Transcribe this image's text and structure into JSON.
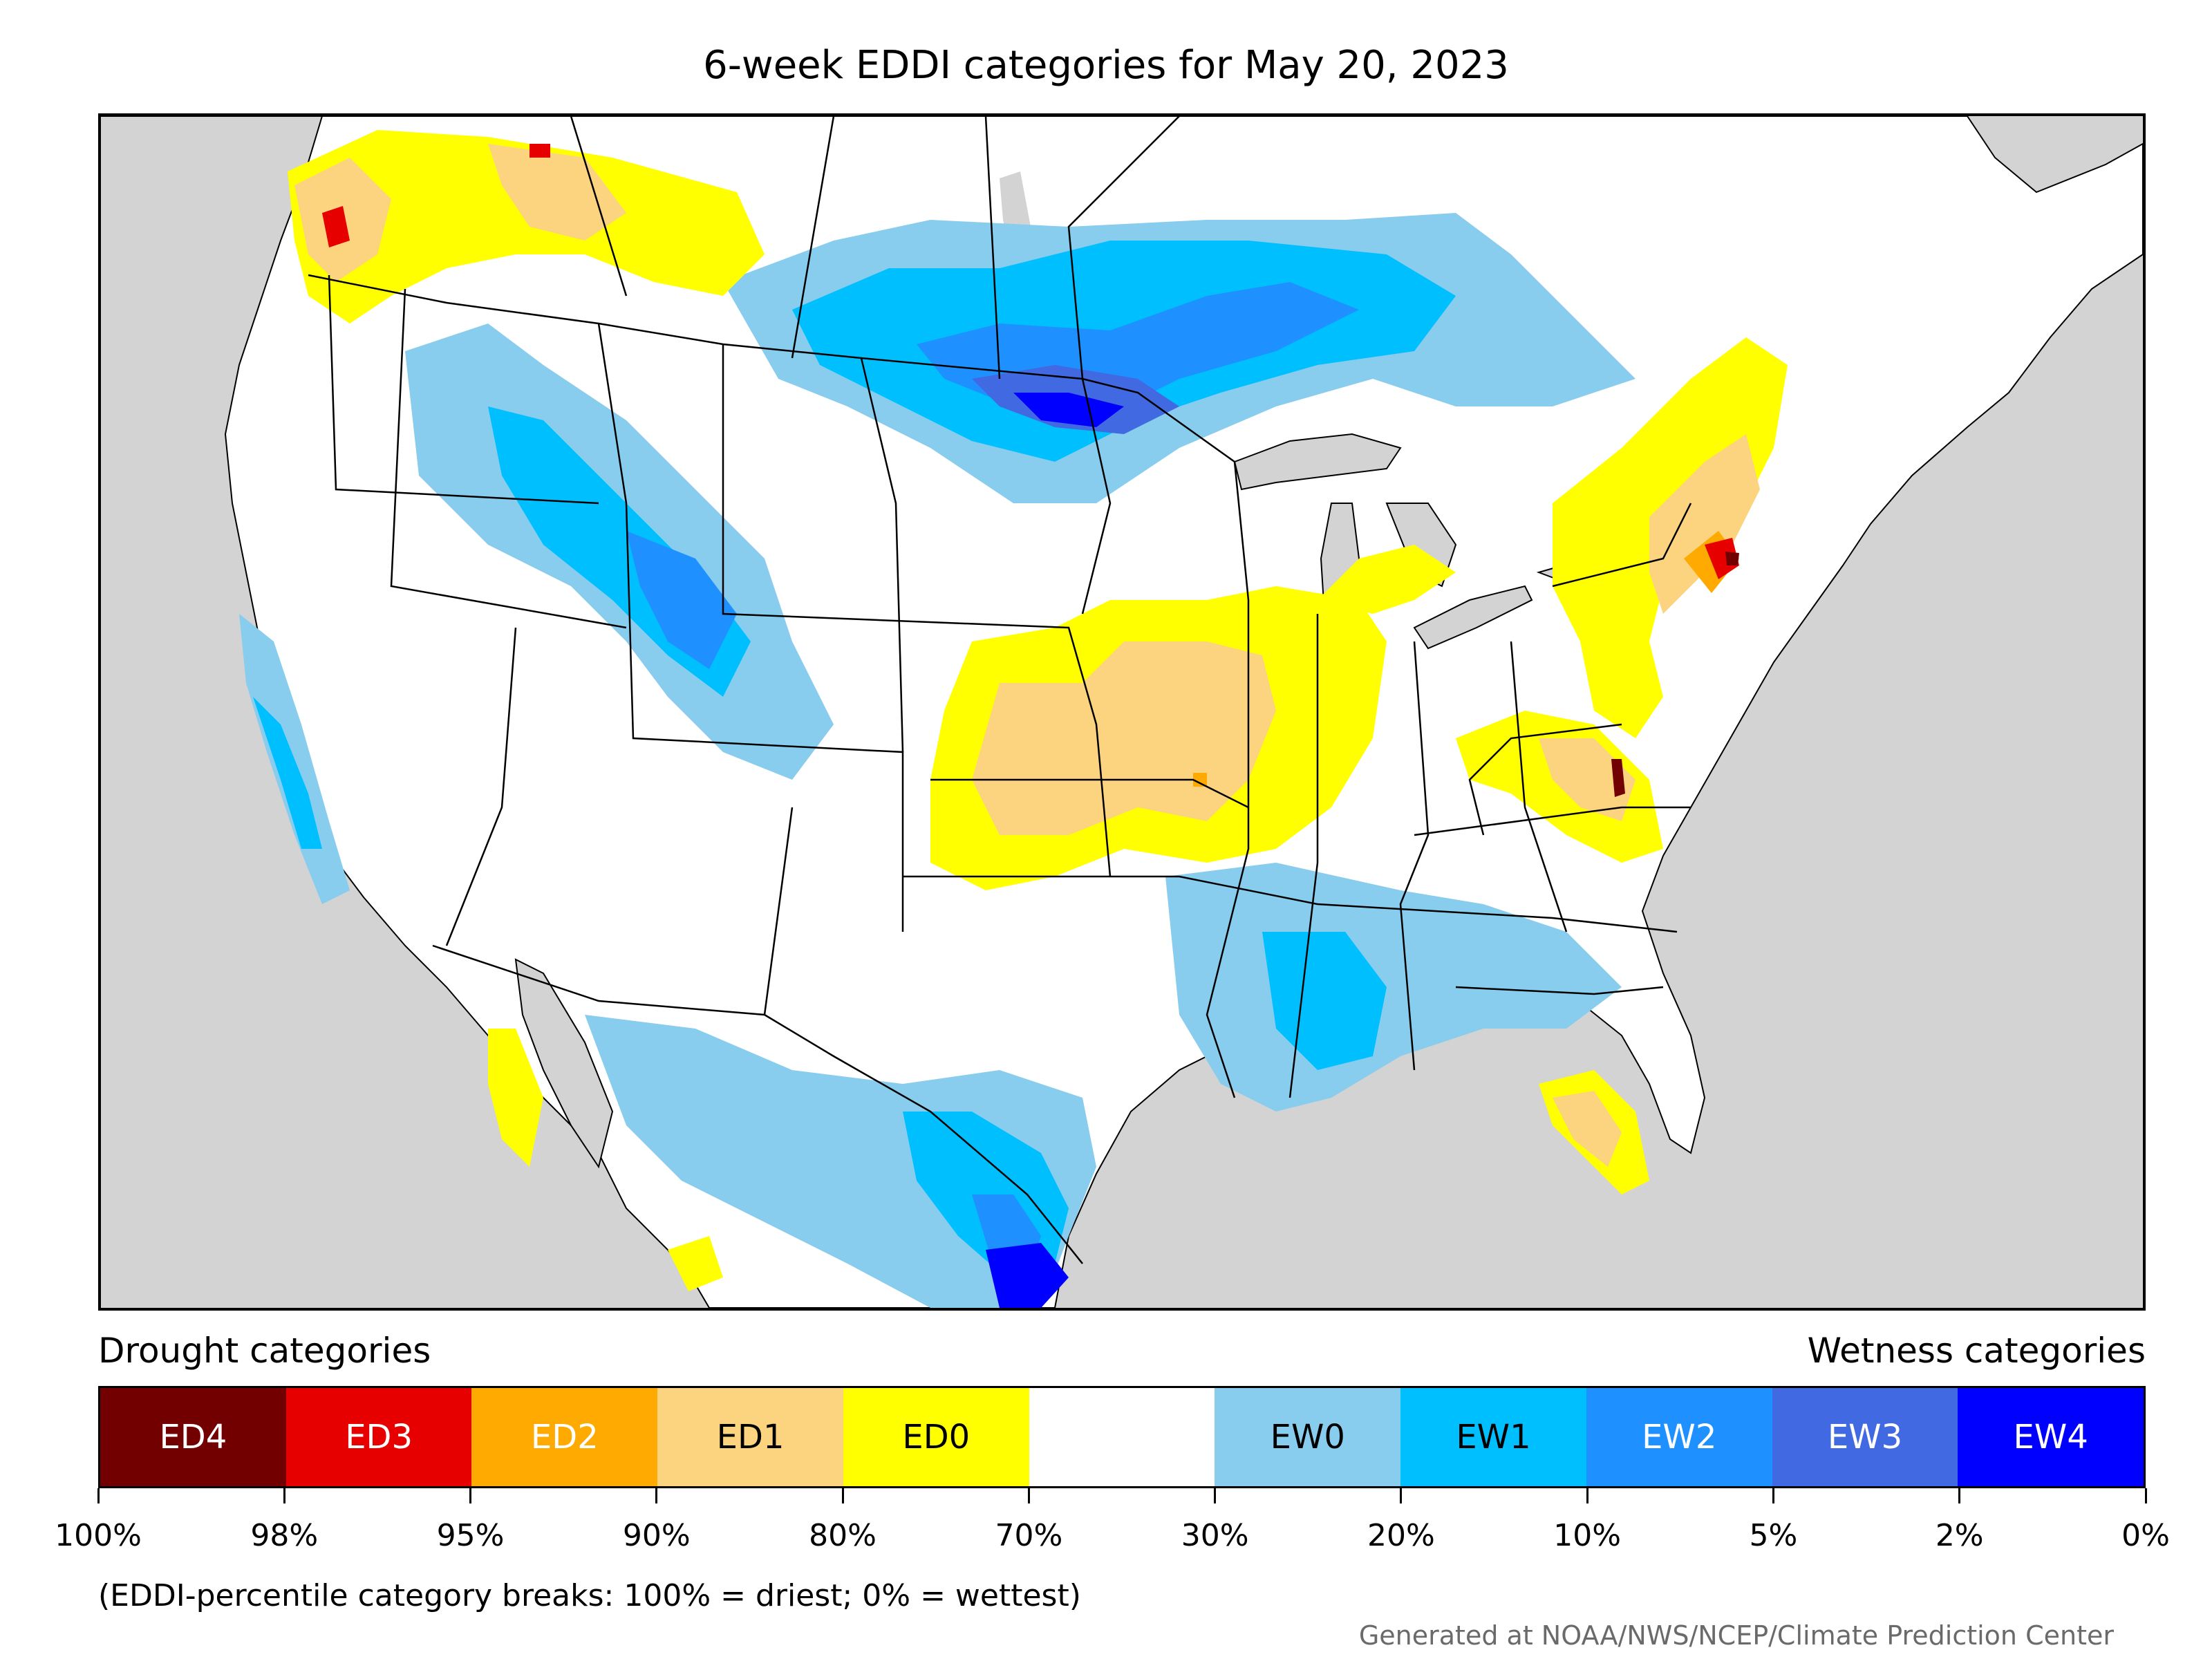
{
  "title": "6-week EDDI categories for May 20, 2023",
  "legend": {
    "drought_heading": "Drought categories",
    "wetness_heading": "Wetness categories",
    "categories": [
      {
        "label": "ED4",
        "color": "#730000",
        "text_color": "#ffffff"
      },
      {
        "label": "ED3",
        "color": "#e60000",
        "text_color": "#ffffff"
      },
      {
        "label": "ED2",
        "color": "#ffaa00",
        "text_color": "#ffffff"
      },
      {
        "label": "ED1",
        "color": "#fcd37f",
        "text_color": "#000000"
      },
      {
        "label": "ED0",
        "color": "#ffff00",
        "text_color": "#000000"
      },
      {
        "label": "",
        "color": "#ffffff",
        "text_color": "#000000"
      },
      {
        "label": "EW0",
        "color": "#88ccee",
        "text_color": "#000000"
      },
      {
        "label": "EW1",
        "color": "#00bfff",
        "text_color": "#000000"
      },
      {
        "label": "EW2",
        "color": "#1e90ff",
        "text_color": "#ffffff"
      },
      {
        "label": "EW3",
        "color": "#4169e1",
        "text_color": "#ffffff"
      },
      {
        "label": "EW4",
        "color": "#0000ff",
        "text_color": "#ffffff"
      }
    ],
    "breaks": [
      "100%",
      "98%",
      "95%",
      "90%",
      "80%",
      "70%",
      "30%",
      "20%",
      "10%",
      "5%",
      "2%",
      "0%"
    ]
  },
  "note": "(EDDI-percentile category breaks: 100% = driest; 0% = wettest)",
  "credit": "Generated at NOAA/NWS/NCEP/Climate Prediction Center",
  "map": {
    "ocean_color": "#d3d3d3",
    "land_color": "#ffffff",
    "border_color": "#000000"
  }
}
